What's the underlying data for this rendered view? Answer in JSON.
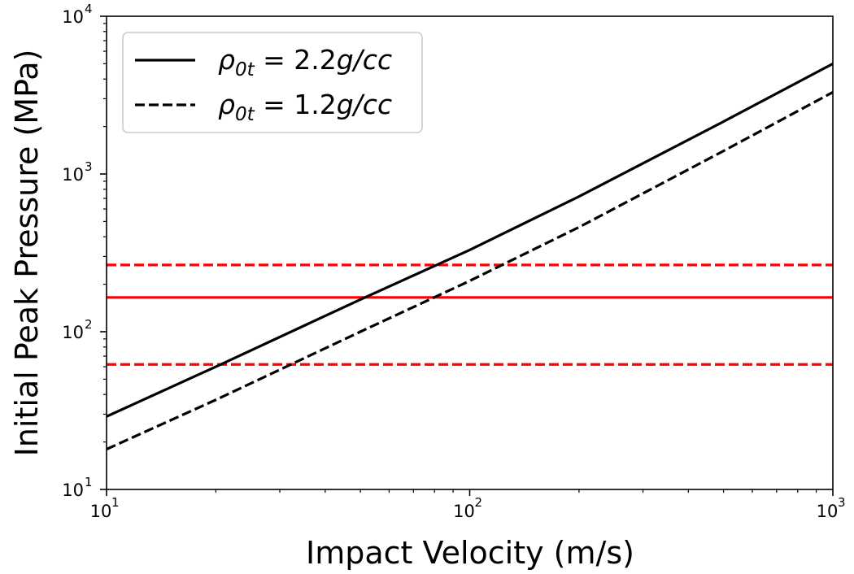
{
  "chart_data": {
    "type": "line",
    "title": "",
    "xlabel": "Impact Velocity (m/s)",
    "ylabel": "Initial Peak Pressure (MPa)",
    "xscale": "log",
    "yscale": "log",
    "xlim": [
      10,
      1000
    ],
    "ylim": [
      10,
      10000
    ],
    "grid": false,
    "legend_position": "top-left",
    "x_ticks": [
      {
        "base": "10",
        "exp": "1",
        "value": 10
      },
      {
        "base": "10",
        "exp": "2",
        "value": 100
      },
      {
        "base": "10",
        "exp": "3",
        "value": 1000
      }
    ],
    "y_ticks": [
      {
        "base": "10",
        "exp": "1",
        "value": 10
      },
      {
        "base": "10",
        "exp": "2",
        "value": 100
      },
      {
        "base": "10",
        "exp": "3",
        "value": 1000
      },
      {
        "base": "10",
        "exp": "4",
        "value": 10000
      }
    ],
    "series": [
      {
        "name": "ρ0t = 2.2g/cc",
        "legend_symbol": "ρ",
        "legend_sub": "0t",
        "legend_value": " = 2.2",
        "legend_units": "g/cc",
        "style": "solid",
        "color": "#000000",
        "x": [
          10,
          20,
          50,
          100,
          200,
          500,
          1000
        ],
        "y": [
          29,
          60,
          160,
          330,
          720,
          2150,
          5000
        ]
      },
      {
        "name": "ρ0t = 1.2g/cc",
        "legend_symbol": "ρ",
        "legend_sub": "0t",
        "legend_value": " = 1.2",
        "legend_units": "g/cc",
        "style": "dashed",
        "color": "#000000",
        "x": [
          10,
          20,
          50,
          100,
          200,
          500,
          1000
        ],
        "y": [
          18,
          37,
          100,
          210,
          460,
          1400,
          3300
        ]
      }
    ],
    "reference_lines": [
      {
        "y": 165,
        "style": "solid",
        "color": "#ff0000"
      },
      {
        "y": 265,
        "style": "dashed",
        "color": "#ff0000"
      },
      {
        "y": 62,
        "style": "dashed",
        "color": "#ff0000"
      }
    ]
  }
}
